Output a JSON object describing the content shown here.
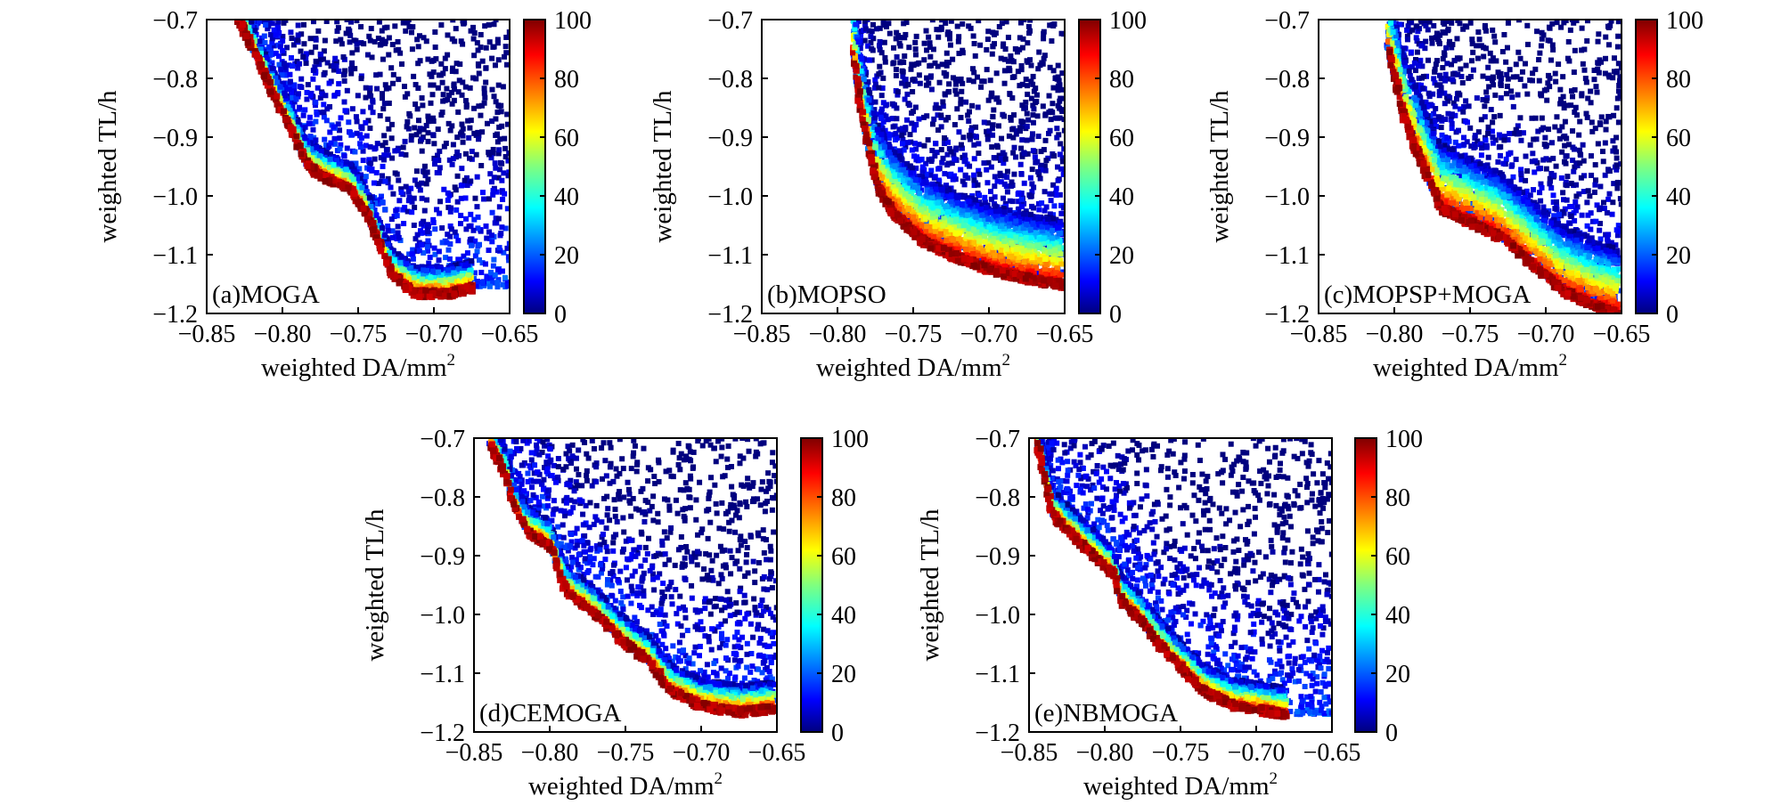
{
  "palette": {
    "jet": [
      "#00007f",
      "#0000ff",
      "#007fff",
      "#00ffff",
      "#7fff7f",
      "#ffff00",
      "#ff7f00",
      "#ff0000",
      "#7f0000"
    ]
  },
  "chart_data": [
    {
      "type": "scatter",
      "panel_label": "(a)MOGA",
      "xlabel": "weighted DA/mm",
      "xlabel_sup": "2",
      "ylabel": "weighted TL/h",
      "xlim": [
        -0.85,
        -0.65
      ],
      "ylim": [
        -1.2,
        -0.7
      ],
      "xticks": [
        "−0.85",
        "−0.80",
        "−0.75",
        "−0.70",
        "−0.65"
      ],
      "yticks": [
        "−0.7",
        "−0.8",
        "−0.9",
        "−1.0",
        "−1.1",
        "−1.2"
      ],
      "colorbar": {
        "min": 0,
        "max": 100,
        "ticks": [
          "100",
          "80",
          "60",
          "40",
          "20",
          "0"
        ]
      },
      "front": [
        [
          -0.83,
          -0.7
        ],
        [
          -0.82,
          -0.75
        ],
        [
          -0.81,
          -0.81
        ],
        [
          -0.8,
          -0.86
        ],
        [
          -0.79,
          -0.915
        ],
        [
          -0.785,
          -0.945
        ],
        [
          -0.775,
          -0.965
        ],
        [
          -0.755,
          -0.99
        ],
        [
          -0.745,
          -1.03
        ],
        [
          -0.737,
          -1.08
        ],
        [
          -0.728,
          -1.135
        ],
        [
          -0.712,
          -1.165
        ],
        [
          -0.69,
          -1.165
        ],
        [
          -0.675,
          -1.155
        ]
      ],
      "front_kind": "ridge"
    },
    {
      "type": "scatter",
      "panel_label": "(b)MOPSO",
      "xlabel": "weighted DA/mm",
      "xlabel_sup": "2",
      "ylabel": "weighted TL/h",
      "xlim": [
        -0.85,
        -0.65
      ],
      "ylim": [
        -1.2,
        -0.7
      ],
      "xticks": [
        "−0.85",
        "−0.80",
        "−0.75",
        "−0.70",
        "−0.65"
      ],
      "yticks": [
        "−0.7",
        "−0.8",
        "−0.9",
        "−1.0",
        "−1.1",
        "−1.2"
      ],
      "colorbar": {
        "min": 0,
        "max": 100,
        "ticks": [
          "100",
          "80",
          "60",
          "40",
          "20",
          "0"
        ]
      },
      "front": [
        [
          -0.79,
          -0.76
        ],
        [
          -0.786,
          -0.84
        ],
        [
          -0.78,
          -0.92
        ],
        [
          -0.774,
          -0.985
        ],
        [
          -0.765,
          -1.025
        ],
        [
          -0.745,
          -1.075
        ],
        [
          -0.725,
          -1.1
        ],
        [
          -0.7,
          -1.125
        ],
        [
          -0.675,
          -1.14
        ],
        [
          -0.652,
          -1.15
        ]
      ],
      "front_kind": "wide"
    },
    {
      "type": "scatter",
      "panel_label": "(c)MOPSP+MOGA",
      "xlabel": "weighted DA/mm",
      "xlabel_sup": "2",
      "ylabel": "weighted TL/h",
      "xlim": [
        -0.85,
        -0.65
      ],
      "ylim": [
        -1.2,
        -0.7
      ],
      "xticks": [
        "−0.85",
        "−0.80",
        "−0.75",
        "−0.70",
        "−0.65"
      ],
      "yticks": [
        "−0.7",
        "−0.8",
        "−0.9",
        "−1.0",
        "−1.1",
        "−1.2"
      ],
      "colorbar": {
        "min": 0,
        "max": 100,
        "ticks": [
          "100",
          "80",
          "60",
          "40",
          "20",
          "0"
        ]
      },
      "front": [
        [
          -0.805,
          -0.745
        ],
        [
          -0.8,
          -0.8
        ],
        [
          -0.795,
          -0.86
        ],
        [
          -0.788,
          -0.91
        ],
        [
          -0.78,
          -0.96
        ],
        [
          -0.77,
          -1.02
        ],
        [
          -0.75,
          -1.045
        ],
        [
          -0.73,
          -1.07
        ],
        [
          -0.71,
          -1.115
        ],
        [
          -0.69,
          -1.16
        ],
        [
          -0.665,
          -1.19
        ],
        [
          -0.652,
          -1.2
        ]
      ],
      "front_kind": "wide"
    },
    {
      "type": "scatter",
      "panel_label": "(d)CEMOGA",
      "xlabel": "weighted DA/mm",
      "xlabel_sup": "2",
      "ylabel": "weighted TL/h",
      "xlim": [
        -0.85,
        -0.65
      ],
      "ylim": [
        -1.2,
        -0.7
      ],
      "xticks": [
        "−0.85",
        "−0.80",
        "−0.75",
        "−0.70",
        "−0.65"
      ],
      "yticks": [
        "−0.7",
        "−0.8",
        "−0.9",
        "−1.0",
        "−1.1",
        "−1.2"
      ],
      "colorbar": {
        "min": 0,
        "max": 100,
        "ticks": [
          "100",
          "80",
          "60",
          "40",
          "20",
          "0"
        ]
      },
      "front": [
        [
          -0.84,
          -0.71
        ],
        [
          -0.83,
          -0.76
        ],
        [
          -0.825,
          -0.81
        ],
        [
          -0.815,
          -0.86
        ],
        [
          -0.8,
          -0.885
        ],
        [
          -0.79,
          -0.96
        ],
        [
          -0.77,
          -1.0
        ],
        [
          -0.755,
          -1.04
        ],
        [
          -0.735,
          -1.08
        ],
        [
          -0.72,
          -1.13
        ],
        [
          -0.7,
          -1.155
        ],
        [
          -0.675,
          -1.165
        ],
        [
          -0.652,
          -1.16
        ]
      ],
      "front_kind": "ridge"
    },
    {
      "type": "scatter",
      "panel_label": "(e)NBMOGA",
      "xlabel": "weighted DA/mm",
      "xlabel_sup": "2",
      "ylabel": "weighted TL/h",
      "xlim": [
        -0.85,
        -0.65
      ],
      "ylim": [
        -1.2,
        -0.7
      ],
      "xticks": [
        "−0.85",
        "−0.80",
        "−0.75",
        "−0.70",
        "−0.65"
      ],
      "yticks": [
        "−0.7",
        "−0.8",
        "−0.9",
        "−1.0",
        "−1.1",
        "−1.2"
      ],
      "colorbar": {
        "min": 0,
        "max": 100,
        "ticks": [
          "100",
          "80",
          "60",
          "40",
          "20",
          "0"
        ]
      },
      "front": [
        [
          -0.845,
          -0.71
        ],
        [
          -0.84,
          -0.77
        ],
        [
          -0.835,
          -0.83
        ],
        [
          -0.82,
          -0.87
        ],
        [
          -0.795,
          -0.93
        ],
        [
          -0.79,
          -0.975
        ],
        [
          -0.775,
          -1.015
        ],
        [
          -0.765,
          -1.05
        ],
        [
          -0.75,
          -1.09
        ],
        [
          -0.735,
          -1.13
        ],
        [
          -0.715,
          -1.155
        ],
        [
          -0.69,
          -1.165
        ],
        [
          -0.68,
          -1.17
        ]
      ],
      "front_kind": "ridge"
    }
  ]
}
